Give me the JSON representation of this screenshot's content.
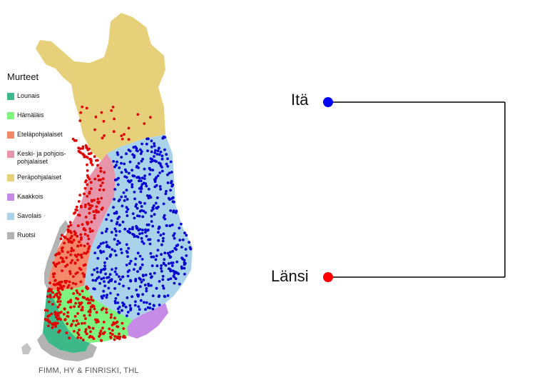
{
  "legend": {
    "title": "Murteet",
    "items": [
      {
        "label": "Lounais",
        "color": "#3db989"
      },
      {
        "label": "Hämäläis",
        "color": "#7ef57e"
      },
      {
        "label": "Eteläpohjalaiset",
        "color": "#f4886b"
      },
      {
        "label": "Keski- ja pohjois-\npohjalaiset",
        "color": "#e695aa"
      },
      {
        "label": "Peräpohjalaiset",
        "color": "#e6d17a"
      },
      {
        "label": "Kaakkois",
        "color": "#c58be6"
      },
      {
        "label": "Savolais",
        "color": "#a9d3ea"
      },
      {
        "label": "Ruotsi",
        "color": "#b3b3b3"
      }
    ]
  },
  "credit": "FIMM, HY & FINRISKI, THL",
  "tree": {
    "east_label": "Itä",
    "west_label": "Länsi",
    "east_color": "#0000ff",
    "west_color": "#ff0000",
    "line_color": "#000000"
  },
  "samples": {
    "east_color": "#0000d0",
    "west_color": "#e00000"
  }
}
